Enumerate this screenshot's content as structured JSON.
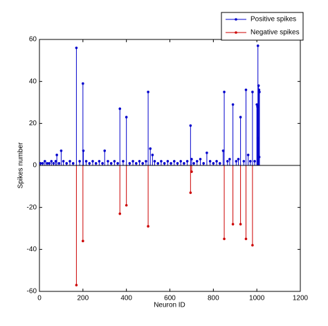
{
  "chart_data": {
    "type": "stem",
    "xlabel": "Neuron ID",
    "ylabel": "Spikes number",
    "xlim": [
      0,
      1200
    ],
    "xticks": [
      0,
      200,
      400,
      600,
      800,
      1000,
      1200
    ],
    "ylim": [
      -60,
      60
    ],
    "yticks": [
      -60,
      -40,
      -20,
      0,
      20,
      40,
      60
    ],
    "legend": "top-right",
    "series": [
      {
        "name": "Positive spikes",
        "color": "#0000cc",
        "x": [
          5,
          15,
          25,
          35,
          45,
          55,
          65,
          75,
          80,
          90,
          100,
          110,
          125,
          140,
          155,
          170,
          185,
          200,
          202,
          215,
          230,
          245,
          260,
          275,
          290,
          300,
          315,
          330,
          345,
          360,
          370,
          385,
          400,
          415,
          430,
          445,
          460,
          475,
          490,
          500,
          510,
          520,
          530,
          545,
          560,
          575,
          590,
          605,
          620,
          635,
          650,
          665,
          680,
          695,
          700,
          710,
          725,
          740,
          755,
          770,
          785,
          800,
          815,
          830,
          845,
          850,
          865,
          875,
          890,
          905,
          915,
          925,
          940,
          950,
          960,
          970,
          980,
          990,
          1000,
          1003,
          1005,
          1007,
          1008,
          1010,
          1011,
          1012
        ],
        "values": [
          1,
          1,
          2,
          1,
          1,
          2,
          1,
          2,
          5,
          1,
          7,
          2,
          1,
          2,
          1,
          56,
          2,
          39,
          7,
          2,
          1,
          2,
          1,
          2,
          1,
          7,
          2,
          1,
          2,
          1,
          27,
          2,
          23,
          1,
          2,
          1,
          2,
          1,
          2,
          35,
          8,
          5,
          2,
          1,
          2,
          1,
          2,
          1,
          2,
          1,
          2,
          1,
          2,
          19,
          3,
          1,
          2,
          3,
          1,
          6,
          2,
          1,
          2,
          1,
          7,
          35,
          2,
          3,
          29,
          2,
          3,
          23,
          2,
          36,
          5,
          2,
          35,
          2,
          29,
          28,
          57,
          13,
          38,
          36,
          4,
          35
        ]
      },
      {
        "name": "Negative spikes",
        "color": "#cc0000",
        "x": [
          170,
          200,
          370,
          400,
          500,
          695,
          700,
          850,
          890,
          925,
          950,
          980
        ],
        "values": [
          -57,
          -36,
          -23,
          -19,
          -29,
          -13,
          -3,
          -35,
          -28,
          -28,
          -35,
          -38
        ]
      }
    ]
  }
}
